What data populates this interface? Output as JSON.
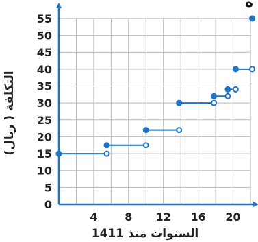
{
  "chart_data": {
    "type": "line",
    "subtype": "step",
    "xlabel": "السنوات منذ 1411",
    "ylabel": "التكلفة ( ريال)",
    "corner_text": "ه",
    "xlim": [
      0,
      22
    ],
    "ylim": [
      0,
      56
    ],
    "x_ticks": [
      4,
      8,
      12,
      16,
      20
    ],
    "y_ticks": [
      0,
      5,
      10,
      15,
      20,
      25,
      30,
      35,
      40,
      45,
      50,
      55
    ],
    "grid": true,
    "colors": {
      "line": "#1a73c8",
      "grid": "#b8b8b8",
      "axis": "#1a73c8"
    },
    "segments": [
      {
        "x_start": 0,
        "x_end": 5.5,
        "y": 15,
        "start": "closed",
        "end": "open"
      },
      {
        "x_start": 5.5,
        "x_end": 10,
        "y": 17.5,
        "start": "closed",
        "end": "open"
      },
      {
        "x_start": 10,
        "x_end": 13.8,
        "y": 22,
        "start": "closed",
        "end": "open"
      },
      {
        "x_start": 13.8,
        "x_end": 17.8,
        "y": 30,
        "start": "closed",
        "end": "open"
      },
      {
        "x_start": 17.8,
        "x_end": 19.4,
        "y": 32,
        "start": "closed",
        "end": "open"
      },
      {
        "x_start": 19.4,
        "x_end": 20.3,
        "y": 34,
        "start": "closed",
        "end": "open"
      },
      {
        "x_start": 20.3,
        "x_end": 22.2,
        "y": 40,
        "start": "closed",
        "end": "open"
      }
    ],
    "points": [
      {
        "x": 22.2,
        "y": 55,
        "style": "closed"
      }
    ]
  }
}
